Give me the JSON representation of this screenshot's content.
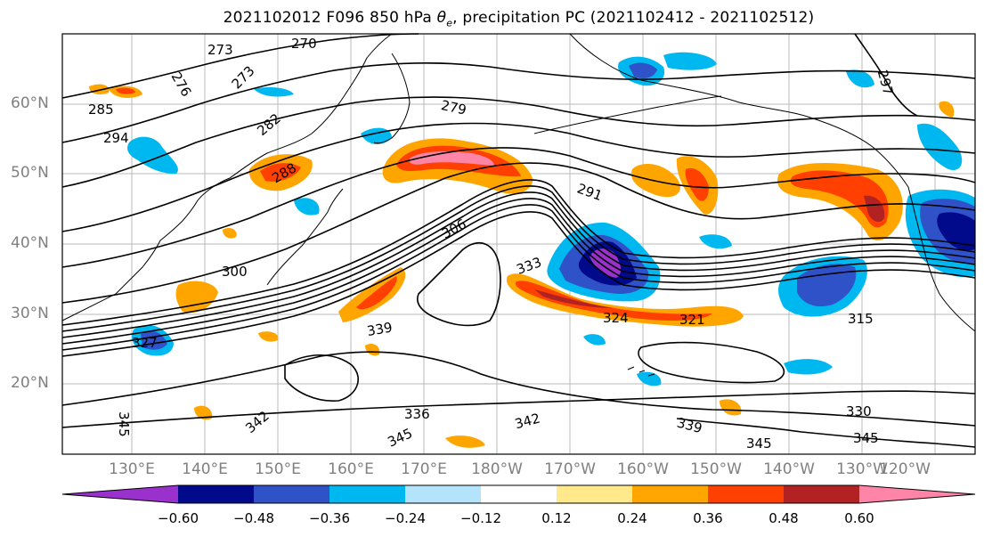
{
  "title": {
    "prefix": "2021102012 F096 850 hPa ",
    "theta_symbol": "θ",
    "theta_subscript": "e",
    "suffix": ", precipitation PC (2021102412 - 2021102512)"
  },
  "map_extent": {
    "lon_min": 120,
    "lon_max": 245,
    "lat_min": 10,
    "lat_max": 70
  },
  "lat_ticks": [
    "60°N",
    "50°N",
    "40°N",
    "30°N",
    "20°N"
  ],
  "lon_ticks": [
    "130°E",
    "140°E",
    "150°E",
    "160°E",
    "170°E",
    "180°W",
    "170°W",
    "160°W",
    "150°W",
    "140°W",
    "130°W",
    "120°W"
  ],
  "contour_labels": [
    "270",
    "273",
    "273",
    "276",
    "279",
    "282",
    "285",
    "288",
    "291",
    "294",
    "297",
    "300",
    "306",
    "315",
    "321",
    "324",
    "327",
    "330",
    "333",
    "336",
    "339",
    "339",
    "342",
    "342",
    "345",
    "345",
    "345",
    "345"
  ],
  "colorbar": {
    "colors": [
      "#9a31cc",
      "#000a8a",
      "#3052c8",
      "#00b8f0",
      "#b3e4fb",
      "#ffffff",
      "#ffe98a",
      "#ffa500",
      "#ff4000",
      "#b22222",
      "#ff85a8"
    ],
    "ticks": [
      "−0.60",
      "−0.48",
      "−0.36",
      "−0.24",
      "−0.12",
      "0.12",
      "0.24",
      "0.36",
      "0.48",
      "0.60"
    ],
    "extend": "both"
  }
}
